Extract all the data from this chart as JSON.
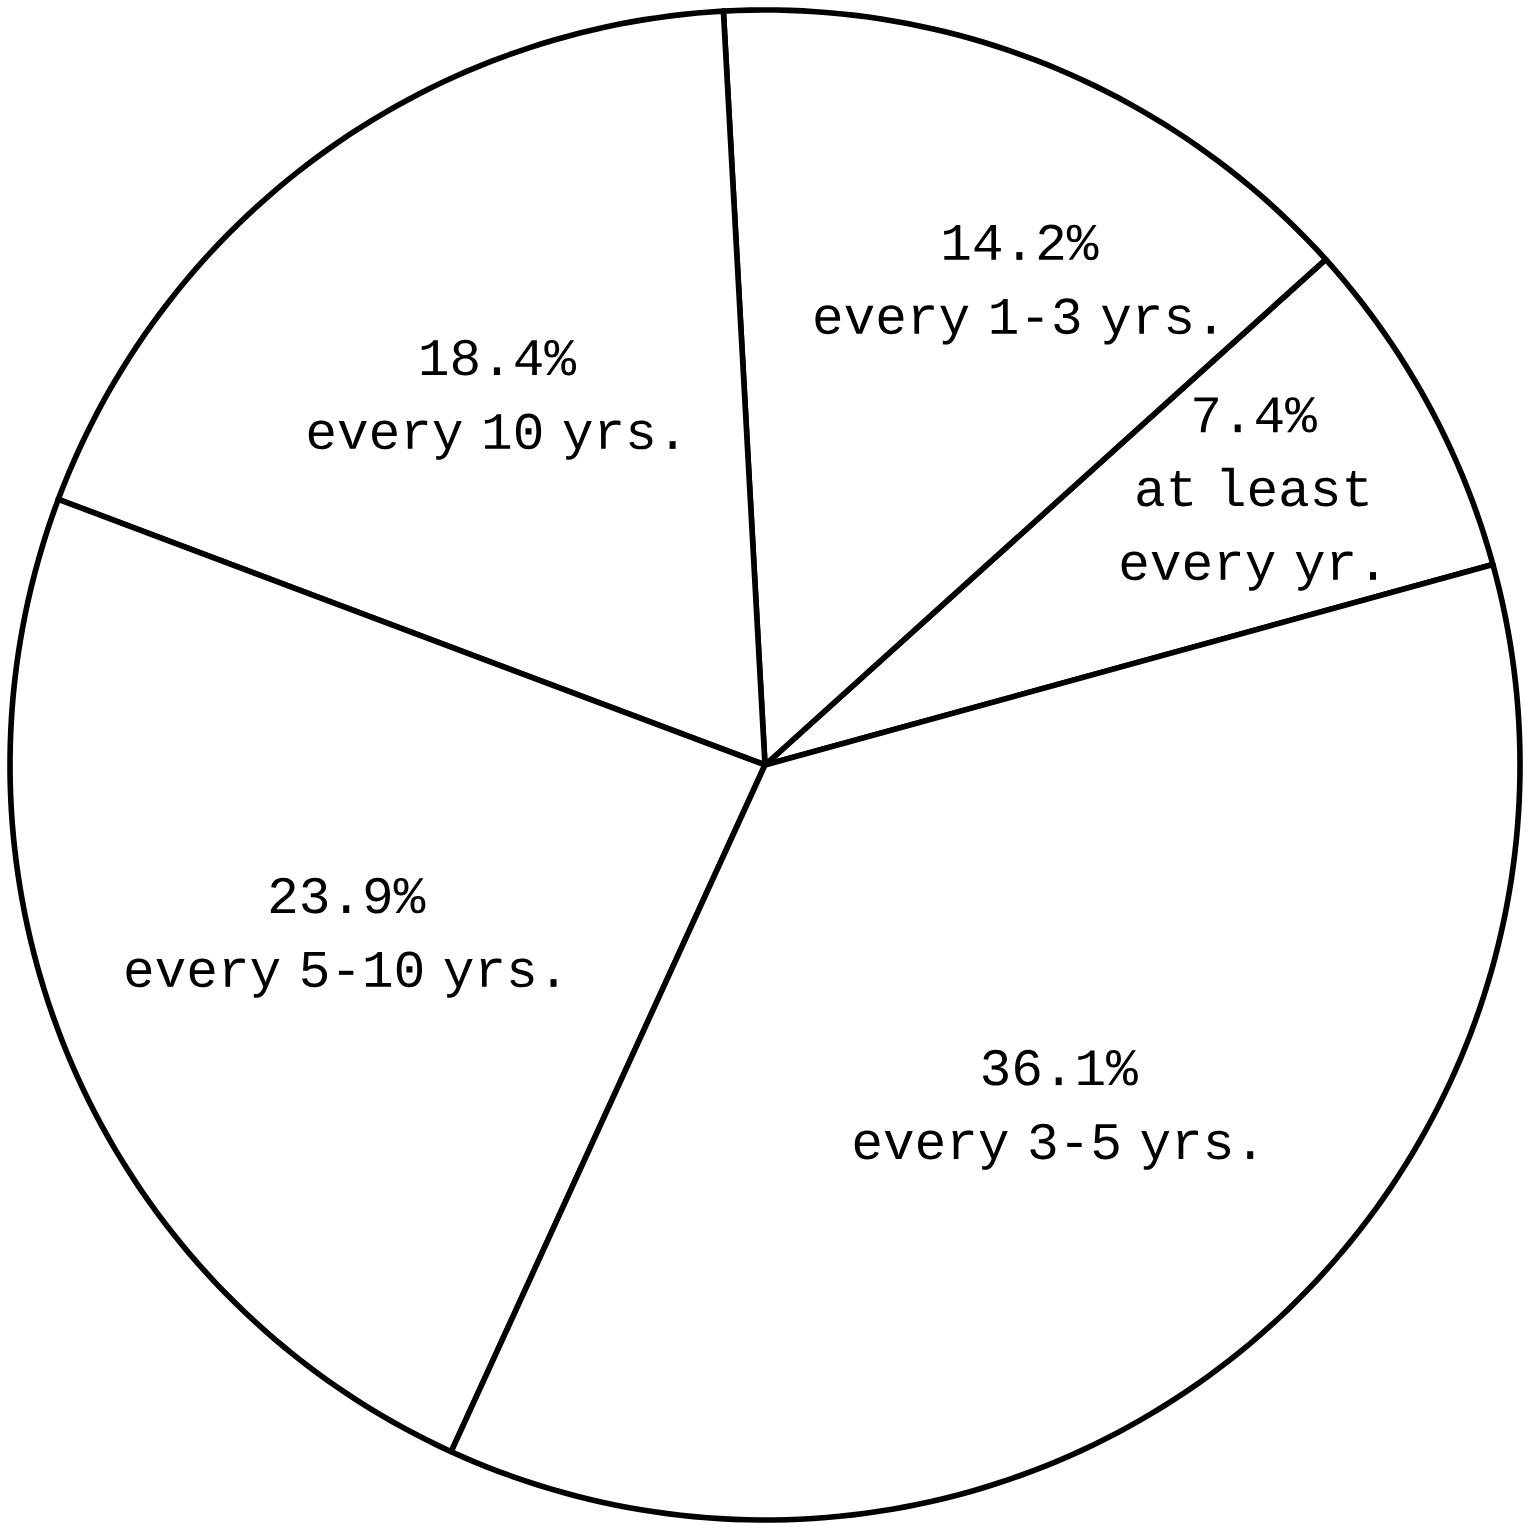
{
  "chart_data": {
    "type": "pie",
    "categories": [
      "at least every yr.",
      "every 1-3 yrs.",
      "every 10 yrs.",
      "every 5-10 yrs.",
      "every 3-5 yrs."
    ],
    "values": [
      7.4,
      14.2,
      18.4,
      23.9,
      36.1
    ],
    "value_labels": [
      "7.4%",
      "14.2%",
      "18.4%",
      "23.9%",
      "36.1%"
    ],
    "colors": [
      "#ffffff",
      "#ffffff",
      "#ffffff",
      "#ffffff",
      "#ffffff"
    ]
  }
}
